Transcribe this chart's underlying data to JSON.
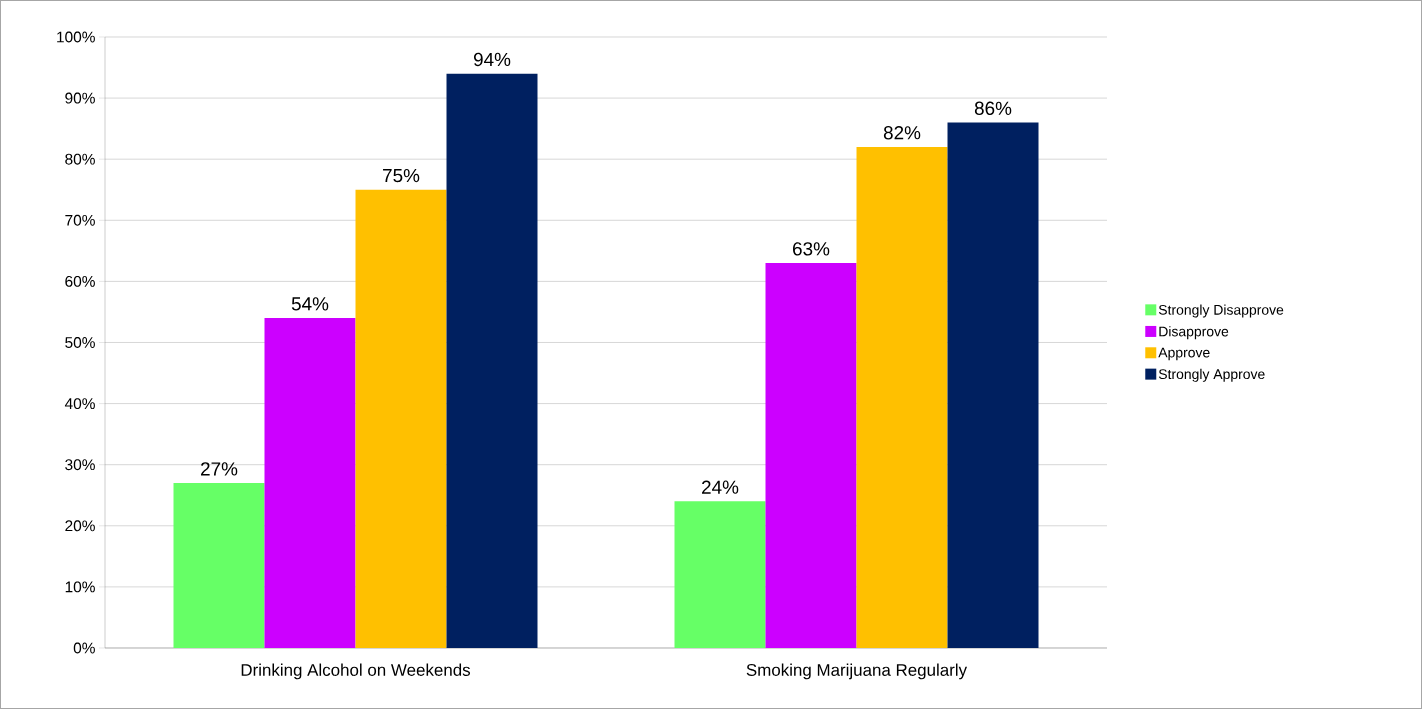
{
  "chart_data": {
    "type": "bar",
    "categories": [
      "Drinking Alcohol on Weekends",
      "Smoking Marijuana Regularly"
    ],
    "series": [
      {
        "name": "Strongly Disapprove",
        "color": "#66ff66",
        "values": [
          27,
          24
        ],
        "value_labels": [
          "27%",
          "24%"
        ]
      },
      {
        "name": "Disapprove",
        "color": "#cc00ff",
        "values": [
          54,
          63
        ],
        "value_labels": [
          "54%",
          "63%"
        ]
      },
      {
        "name": "Approve",
        "color": "#ffc000",
        "values": [
          75,
          82
        ],
        "value_labels": [
          "75%",
          "82%"
        ]
      },
      {
        "name": "Strongly Approve",
        "color": "#002060",
        "values": [
          94,
          86
        ],
        "value_labels": [
          "94%",
          "86%"
        ]
      }
    ],
    "ylim": [
      0,
      100
    ],
    "yticks": [
      {
        "value": 0,
        "label": "0%"
      },
      {
        "value": 10,
        "label": "10%"
      },
      {
        "value": 20,
        "label": "20%"
      },
      {
        "value": 30,
        "label": "30%"
      },
      {
        "value": 40,
        "label": "40%"
      },
      {
        "value": 50,
        "label": "50%"
      },
      {
        "value": 60,
        "label": "60%"
      },
      {
        "value": 70,
        "label": "70%"
      },
      {
        "value": 80,
        "label": "80%"
      },
      {
        "value": 90,
        "label": "90%"
      },
      {
        "value": 100,
        "label": "100%"
      }
    ],
    "grid": "y",
    "legend": "right"
  }
}
